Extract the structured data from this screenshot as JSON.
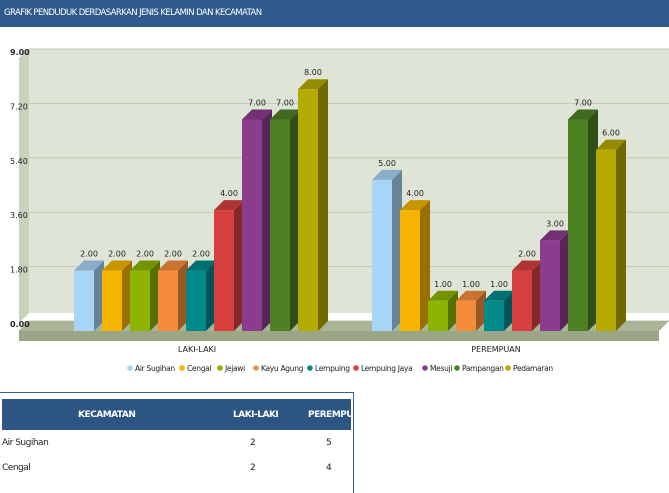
{
  "header": {
    "title": "GRAFIK PENDUDUK DERDASARKAN JENIS KELAMIN DAN KECAMATAN"
  },
  "chart_data": {
    "type": "bar",
    "categories": [
      "LAKI-LAKI",
      "PEREMPUAN"
    ],
    "series": [
      {
        "name": "Air Sugihan",
        "color": "#a8d4f5",
        "values": [
          2,
          5
        ]
      },
      {
        "name": "Cengal",
        "color": "#f4b400",
        "values": [
          2,
          4
        ]
      },
      {
        "name": "Jejawi",
        "color": "#8cb400",
        "values": [
          2,
          1
        ]
      },
      {
        "name": "Kayu Agung",
        "color": "#f58c3c",
        "values": [
          2,
          1
        ]
      },
      {
        "name": "Lempuing",
        "color": "#008a8a",
        "values": [
          2,
          1
        ]
      },
      {
        "name": "Lempuing Jaya",
        "color": "#d84040",
        "values": [
          4,
          2
        ]
      },
      {
        "name": "Mesuji",
        "color": "#8c3c8c",
        "values": [
          7,
          3
        ]
      },
      {
        "name": "Pampangan",
        "color": "#4e8024",
        "values": [
          7,
          7
        ]
      },
      {
        "name": "Pedamaran",
        "color": "#b4aa00",
        "values": [
          8,
          6
        ]
      }
    ],
    "yticks": [
      "0.00",
      "1.80",
      "3.60",
      "5.40",
      "7.20",
      "9.00"
    ],
    "ylim": [
      0,
      9
    ],
    "grid": true,
    "legend": "bottom"
  },
  "table": {
    "headers": [
      "KECAMATAN",
      "LAKI-LAKI",
      "PEREMPUAN"
    ],
    "rows": [
      [
        "Air Sugihan",
        "2",
        "5"
      ],
      [
        "Cengal",
        "2",
        "4"
      ]
    ]
  }
}
